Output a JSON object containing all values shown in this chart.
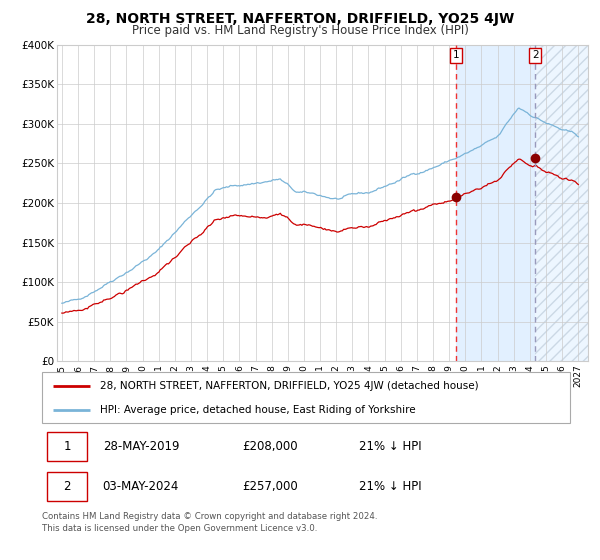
{
  "title": "28, NORTH STREET, NAFFERTON, DRIFFIELD, YO25 4JW",
  "subtitle": "Price paid vs. HM Land Registry's House Price Index (HPI)",
  "title_fontsize": 10,
  "subtitle_fontsize": 8.5,
  "ylim": [
    0,
    400000
  ],
  "yticks": [
    0,
    50000,
    100000,
    150000,
    200000,
    250000,
    300000,
    350000,
    400000
  ],
  "ytick_labels": [
    "£0",
    "£50K",
    "£100K",
    "£150K",
    "£200K",
    "£250K",
    "£300K",
    "£350K",
    "£400K"
  ],
  "hpi_color": "#7ab4d8",
  "price_color": "#cc0000",
  "marker_color": "#8b0000",
  "vline1_color": "#ee3333",
  "vline2_color": "#9999bb",
  "bg_shade_color": "#ddeeff",
  "hatch_color": "#aabbcc",
  "point1_date": 2019.41,
  "point1_price": 208000,
  "point2_date": 2024.34,
  "point2_price": 257000,
  "legend_line1": "28, NORTH STREET, NAFFERTON, DRIFFIELD, YO25 4JW (detached house)",
  "legend_line2": "HPI: Average price, detached house, East Riding of Yorkshire",
  "table_row1": [
    "1",
    "28-MAY-2019",
    "£208,000",
    "21% ↓ HPI"
  ],
  "table_row2": [
    "2",
    "03-MAY-2024",
    "£257,000",
    "21% ↓ HPI"
  ],
  "footnote": "Contains HM Land Registry data © Crown copyright and database right 2024.\nThis data is licensed under the Open Government Licence v3.0.",
  "xstart": 1995,
  "xend": 2027,
  "grid_color": "#cccccc",
  "background_color": "#ffffff"
}
